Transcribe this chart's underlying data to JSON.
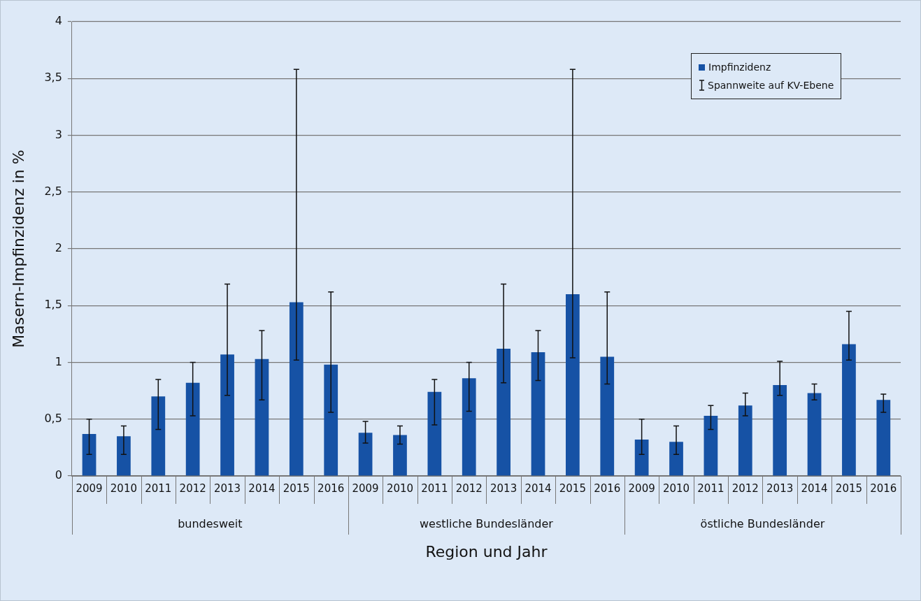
{
  "chart_data": {
    "type": "bar",
    "xlabel": "Region und Jahr",
    "ylabel": "Masern-Impfinzidenz in %",
    "categories": [
      "2009",
      "2010",
      "2011",
      "2012",
      "2013",
      "2014",
      "2015",
      "2016",
      "2009",
      "2010",
      "2011",
      "2012",
      "2013",
      "2014",
      "2015",
      "2016",
      "2009",
      "2010",
      "2011",
      "2012",
      "2013",
      "2014",
      "2015",
      "2016"
    ],
    "series": [
      {
        "name": "Impfinzidenz",
        "color": "#1652a5",
        "values": [
          0.37,
          0.35,
          0.7,
          0.82,
          1.07,
          1.03,
          1.53,
          0.98,
          0.38,
          0.36,
          0.74,
          0.86,
          1.12,
          1.09,
          1.6,
          1.05,
          0.32,
          0.3,
          0.53,
          0.62,
          0.8,
          0.73,
          1.16,
          0.67
        ],
        "errors": [
          [
            0.19,
            0.5
          ],
          [
            0.19,
            0.44
          ],
          [
            0.41,
            0.85
          ],
          [
            0.53,
            1.0
          ],
          [
            0.71,
            1.69
          ],
          [
            0.67,
            1.28
          ],
          [
            1.02,
            3.58
          ],
          [
            0.56,
            1.62
          ],
          [
            0.29,
            0.48
          ],
          [
            0.28,
            0.44
          ],
          [
            0.45,
            0.85
          ],
          [
            0.57,
            1.0
          ],
          [
            0.82,
            1.69
          ],
          [
            0.84,
            1.28
          ],
          [
            1.04,
            3.58
          ],
          [
            0.81,
            1.62
          ],
          [
            0.19,
            0.5
          ],
          [
            0.19,
            0.44
          ],
          [
            0.41,
            0.62
          ],
          [
            0.53,
            0.73
          ],
          [
            0.71,
            1.01
          ],
          [
            0.67,
            0.81
          ],
          [
            1.02,
            1.45
          ],
          [
            0.56,
            0.72
          ]
        ]
      }
    ],
    "ylim": [
      0,
      4
    ],
    "yticks": [
      0,
      {
        "value": 0.5,
        "label": "0,5"
      },
      1,
      {
        "value": 1.5,
        "label": "1,5"
      },
      2,
      {
        "value": 2.5,
        "label": "2,5"
      },
      3,
      {
        "value": 3.5,
        "label": "3,5"
      },
      4
    ],
    "grid": "y",
    "legend": "top right",
    "annotations": [
      "bundesweit",
      "westliche Bundesländer",
      "östliche Bundesländer",
      "Spannweite auf KV-Ebene"
    ]
  }
}
